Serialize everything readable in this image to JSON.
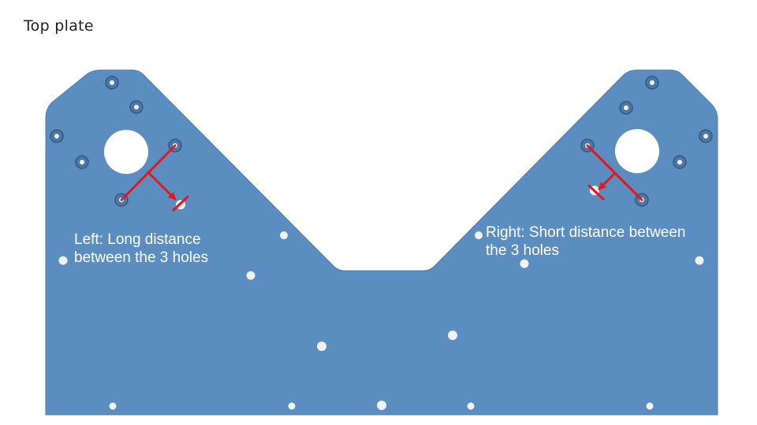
{
  "title": "Top plate",
  "annotations": {
    "left": "Left: Long distance\nbetween the 3 holes",
    "right": "Right: Short distance between\nthe 3 holes"
  },
  "colors": {
    "plate": "#5b8dc0",
    "plate_edge": "#4f7fb0",
    "hole": "#f2f2f2",
    "marker": "#e8151b"
  }
}
